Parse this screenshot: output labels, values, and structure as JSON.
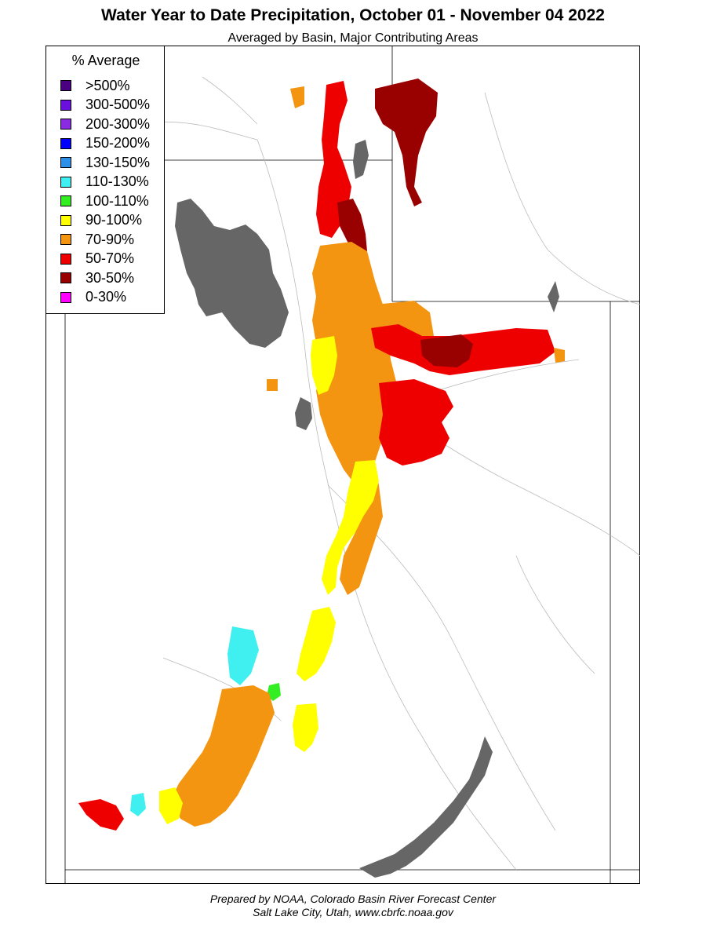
{
  "header": {
    "title": "Water Year to Date Precipitation, October 01  - November 04 2022",
    "subtitle": "Averaged by Basin, Major Contributing Areas"
  },
  "legend": {
    "title": "% Average",
    "items": [
      {
        "label": ">500%",
        "color": "#4b0082"
      },
      {
        "label": "300-500%",
        "color": "#6a0fdc"
      },
      {
        "label": "200-300%",
        "color": "#8a2be2"
      },
      {
        "label": "150-200%",
        "color": "#0000ff"
      },
      {
        "label": "130-150%",
        "color": "#2e8fe8"
      },
      {
        "label": "110-130%",
        "color": "#40f0f0"
      },
      {
        "label": "100-110%",
        "color": "#33ee22"
      },
      {
        "label": "90-100%",
        "color": "#ffff00"
      },
      {
        "label": "70-90%",
        "color": "#f39511"
      },
      {
        "label": "50-70%",
        "color": "#ee0000"
      },
      {
        "label": "30-50%",
        "color": "#990000"
      },
      {
        "label": "0-30%",
        "color": "#ff00ff"
      }
    ]
  },
  "map": {
    "lake_color": "#666666",
    "boundary_color": "#bbbbbb"
  },
  "footer": {
    "line1": "Prepared by NOAA, Colorado Basin River Forecast Center",
    "line2": "Salt Lake City, Utah, www.cbrfc.noaa.gov"
  }
}
